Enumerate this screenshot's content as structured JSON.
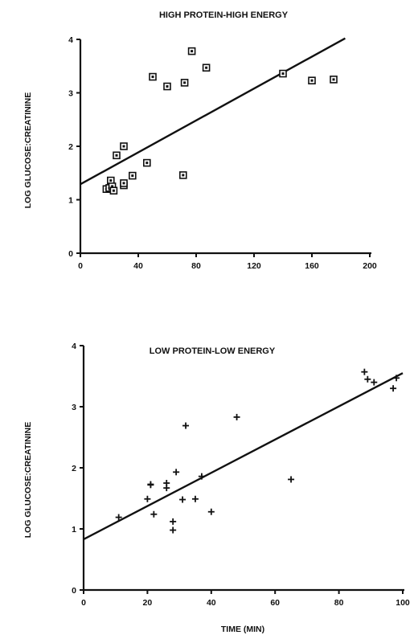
{
  "chart_data": [
    {
      "type": "scatter",
      "title": "HIGH PROTEIN-HIGH ENERGY",
      "xlabel": "",
      "ylabel": "LOG GLUCOSE:CREATININE",
      "xlim": [
        0,
        200
      ],
      "ylim": [
        0,
        4
      ],
      "xticks": [
        "0",
        "40",
        "80",
        "120",
        "160",
        "200"
      ],
      "yticks": [
        "0",
        "1",
        "2",
        "3",
        "4"
      ],
      "marker": "square",
      "points": [
        {
          "x": 18,
          "y": 1.2
        },
        {
          "x": 20,
          "y": 1.22
        },
        {
          "x": 21,
          "y": 1.36
        },
        {
          "x": 22,
          "y": 1.25
        },
        {
          "x": 23,
          "y": 1.17
        },
        {
          "x": 25,
          "y": 1.83
        },
        {
          "x": 30,
          "y": 1.27
        },
        {
          "x": 30,
          "y": 1.31
        },
        {
          "x": 30,
          "y": 2.0
        },
        {
          "x": 36,
          "y": 1.45
        },
        {
          "x": 46,
          "y": 1.69
        },
        {
          "x": 50,
          "y": 3.3
        },
        {
          "x": 60,
          "y": 3.12
        },
        {
          "x": 71,
          "y": 1.46
        },
        {
          "x": 72,
          "y": 3.19
        },
        {
          "x": 77,
          "y": 3.78
        },
        {
          "x": 87,
          "y": 3.47
        },
        {
          "x": 140,
          "y": 3.36
        },
        {
          "x": 160,
          "y": 3.23
        },
        {
          "x": 175,
          "y": 3.25
        }
      ],
      "regression_line": {
        "x": [
          0,
          183
        ],
        "y": [
          1.29,
          4.02
        ]
      }
    },
    {
      "type": "scatter",
      "title": "LOW PROTEIN-LOW ENERGY",
      "xlabel": "TIME (MIN)",
      "ylabel": "LOG GLUCOSE:CREATININE",
      "xlim": [
        0,
        100
      ],
      "ylim": [
        0,
        4
      ],
      "xticks": [
        "0",
        "20",
        "40",
        "60",
        "80",
        "100"
      ],
      "yticks": [
        "0",
        "1",
        "2",
        "3",
        "4"
      ],
      "marker": "plus",
      "points": [
        {
          "x": 11,
          "y": 1.19
        },
        {
          "x": 20,
          "y": 1.49
        },
        {
          "x": 21,
          "y": 1.72
        },
        {
          "x": 21,
          "y": 1.73
        },
        {
          "x": 22,
          "y": 1.24
        },
        {
          "x": 26,
          "y": 1.75
        },
        {
          "x": 26,
          "y": 1.67
        },
        {
          "x": 28,
          "y": 1.12
        },
        {
          "x": 28,
          "y": 0.98
        },
        {
          "x": 29,
          "y": 1.93
        },
        {
          "x": 31,
          "y": 1.48
        },
        {
          "x": 32,
          "y": 2.69
        },
        {
          "x": 35,
          "y": 1.49
        },
        {
          "x": 37,
          "y": 1.86
        },
        {
          "x": 40,
          "y": 1.28
        },
        {
          "x": 48,
          "y": 2.83
        },
        {
          "x": 65,
          "y": 1.81
        },
        {
          "x": 88,
          "y": 3.57
        },
        {
          "x": 89,
          "y": 3.45
        },
        {
          "x": 91,
          "y": 3.4
        },
        {
          "x": 97,
          "y": 3.3
        },
        {
          "x": 98,
          "y": 3.47
        }
      ],
      "regression_line": {
        "x": [
          0,
          100
        ],
        "y": [
          0.83,
          3.55
        ]
      }
    }
  ]
}
